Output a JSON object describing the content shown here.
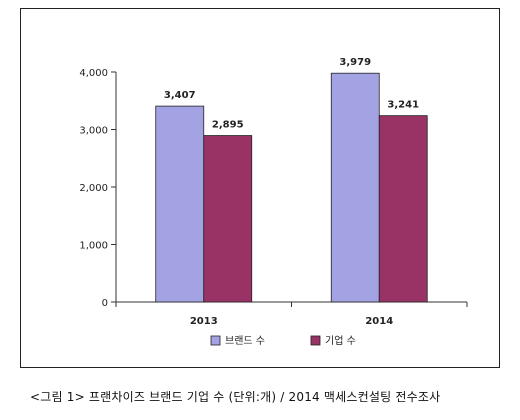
{
  "chart_data": {
    "type": "bar",
    "categories": [
      "2013",
      "2014"
    ],
    "series": [
      {
        "name": "브랜드 수",
        "values": [
          3407,
          3979
        ],
        "value_labels": [
          "3,407",
          "3,979"
        ],
        "color": "#a3a3e3"
      },
      {
        "name": "기업 수",
        "values": [
          2895,
          3241
        ],
        "value_labels": [
          "2,895",
          "3,241"
        ],
        "color": "#993366"
      }
    ],
    "title": "",
    "xlabel": "",
    "ylabel": "",
    "ylim": [
      0,
      4000
    ],
    "yticks": [
      0,
      1000,
      2000,
      3000,
      4000
    ],
    "ytick_labels": [
      "0",
      "1,000",
      "2,000",
      "3,000",
      "4,000"
    ],
    "grid": false,
    "legend_position": "bottom"
  },
  "caption": "<그림 1> 프랜차이즈 브랜드 기업 수 (단위:개) / 2014 맥세스컨설팅 전수조사"
}
